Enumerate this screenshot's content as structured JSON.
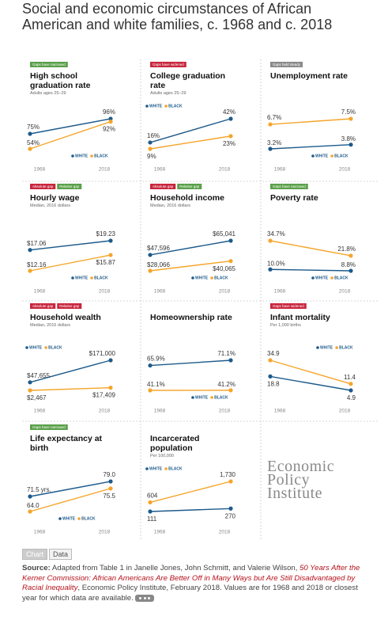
{
  "title": "Social and economic circumstances of African American and white families, c. 1968 and c. 2018",
  "chart_data": [
    {
      "type": "line",
      "badges": [
        {
          "text": "Gaps have narrowed",
          "color": "#5aa04a"
        }
      ],
      "title": "High school graduation rate",
      "subtitle": "Adults ages 25–29",
      "legend": "bottom-right",
      "categories": [
        "1968",
        "2018"
      ],
      "series": [
        {
          "name": "WHITE",
          "color": "#1d5a8a",
          "values": [
            75,
            96
          ],
          "value_labels": [
            "75%",
            "96%"
          ]
        },
        {
          "name": "BLACK",
          "color": "#f5a52a",
          "values": [
            54,
            92
          ],
          "value_labels": [
            "54%",
            "92%"
          ]
        }
      ]
    },
    {
      "type": "line",
      "badges": [
        {
          "text": "Gaps have widened",
          "color": "#c8263d"
        }
      ],
      "title": "College graduation rate",
      "subtitle": "Adults ages 25–29",
      "legend": "top-left",
      "categories": [
        "1968",
        "2018"
      ],
      "series": [
        {
          "name": "WHITE",
          "color": "#1d5a8a",
          "values": [
            16,
            42
          ],
          "value_labels": [
            "16%",
            "42%"
          ]
        },
        {
          "name": "BLACK",
          "color": "#f5a52a",
          "values": [
            9,
            23
          ],
          "value_labels": [
            "9%",
            "23%"
          ]
        }
      ]
    },
    {
      "type": "line",
      "badges": [
        {
          "text": "Gaps held steady",
          "color": "#8a8a8a"
        }
      ],
      "title": "Unemployment rate",
      "legend": "bottom-right",
      "categories": [
        "1968",
        "2018"
      ],
      "series": [
        {
          "name": "WHITE",
          "color": "#1d5a8a",
          "values": [
            3.2,
            3.8
          ],
          "value_labels": [
            "3.2%",
            "3.8%"
          ]
        },
        {
          "name": "BLACK",
          "color": "#f5a52a",
          "values": [
            6.7,
            7.5
          ],
          "value_labels": [
            "6.7%",
            "7.5%"
          ]
        }
      ]
    },
    {
      "type": "line",
      "badges": [
        {
          "text": "Absolute gap",
          "color": "#c8263d"
        },
        {
          "text": "Relative gap",
          "color": "#5aa04a"
        }
      ],
      "title": "Hourly wage",
      "subtitle": "Median, 2016 dollars",
      "legend": "bottom-right",
      "categories": [
        "1968",
        "2018"
      ],
      "series": [
        {
          "name": "WHITE",
          "color": "#1d5a8a",
          "values": [
            17.06,
            19.23
          ],
          "value_labels": [
            "$17.06",
            "$19.23"
          ]
        },
        {
          "name": "BLACK",
          "color": "#f5a52a",
          "values": [
            12.16,
            15.87
          ],
          "value_labels": [
            "$12.16",
            "$15.87"
          ]
        }
      ]
    },
    {
      "type": "line",
      "badges": [
        {
          "text": "Absolute gap",
          "color": "#c8263d"
        },
        {
          "text": "Relative gap",
          "color": "#5aa04a"
        }
      ],
      "title": "Household income",
      "subtitle": "Median, 2016 dollars",
      "legend": "bottom-right",
      "categories": [
        "1968",
        "2018"
      ],
      "series": [
        {
          "name": "WHITE",
          "color": "#1d5a8a",
          "values": [
            47596,
            65041
          ],
          "value_labels": [
            "$47,596",
            "$65,041"
          ]
        },
        {
          "name": "BLACK",
          "color": "#f5a52a",
          "values": [
            28066,
            40065
          ],
          "value_labels": [
            "$28,066",
            "$40,065"
          ]
        }
      ]
    },
    {
      "type": "line",
      "badges": [
        {
          "text": "Gaps have narrowed",
          "color": "#5aa04a"
        }
      ],
      "title": "Poverty rate",
      "legend": "bottom-right",
      "categories": [
        "1968",
        "2018"
      ],
      "series": [
        {
          "name": "WHITE",
          "color": "#1d5a8a",
          "values": [
            10.0,
            8.8
          ],
          "value_labels": [
            "10.0%",
            "8.8%"
          ]
        },
        {
          "name": "BLACK",
          "color": "#f5a52a",
          "values": [
            34.7,
            21.8
          ],
          "value_labels": [
            "34.7%",
            "21.8%"
          ]
        }
      ]
    },
    {
      "type": "line",
      "badges": [
        {
          "text": "Absolute gap",
          "color": "#c8263d"
        },
        {
          "text": "Relative gap",
          "color": "#c8263d"
        }
      ],
      "title": "Household wealth",
      "subtitle": "Median, 2016 dollars",
      "legend": "top-left",
      "categories": [
        "1968",
        "2018"
      ],
      "series": [
        {
          "name": "WHITE",
          "color": "#1d5a8a",
          "values": [
            47655,
            171000
          ],
          "value_labels": [
            "$47,655",
            "$171,000"
          ]
        },
        {
          "name": "BLACK",
          "color": "#f5a52a",
          "values": [
            2467,
            17409
          ],
          "value_labels": [
            "$2,467",
            "$17,409"
          ]
        }
      ]
    },
    {
      "type": "line",
      "title": "Homeownership rate",
      "legend": "bottom-right",
      "categories": [
        "1968",
        "2018"
      ],
      "series": [
        {
          "name": "WHITE",
          "color": "#1d5a8a",
          "values": [
            65.9,
            71.1
          ],
          "value_labels": [
            "65.9%",
            "71.1%"
          ]
        },
        {
          "name": "BLACK",
          "color": "#f5a52a",
          "values": [
            41.1,
            41.2
          ],
          "value_labels": [
            "41.1%",
            "41.2%"
          ]
        }
      ]
    },
    {
      "type": "line",
      "badges": [
        {
          "text": "Gaps have widened",
          "color": "#c8263d"
        }
      ],
      "title": "Infant mortality",
      "subtitle": "Per 1,000 births",
      "legend": "top-right",
      "categories": [
        "1968",
        "2018"
      ],
      "series": [
        {
          "name": "WHITE",
          "color": "#1d5a8a",
          "values": [
            18.8,
            4.9
          ],
          "value_labels": [
            "18.8",
            "4.9"
          ]
        },
        {
          "name": "BLACK",
          "color": "#f5a52a",
          "values": [
            34.9,
            11.4
          ],
          "value_labels": [
            "34.9",
            "11.4"
          ]
        }
      ]
    },
    {
      "type": "line",
      "badges": [
        {
          "text": "Gaps have narrowed",
          "color": "#5aa04a"
        }
      ],
      "title": "Life expectancy at birth",
      "legend": "bottom-center",
      "categories": [
        "1968",
        "2018"
      ],
      "series": [
        {
          "name": "WHITE",
          "color": "#1d5a8a",
          "values": [
            71.5,
            79.0
          ],
          "value_labels": [
            "71.5 yrs.",
            "79.0"
          ]
        },
        {
          "name": "BLACK",
          "color": "#f5a52a",
          "values": [
            64.0,
            75.5
          ],
          "value_labels": [
            "64.0",
            "75.5"
          ]
        }
      ]
    },
    {
      "type": "line",
      "title": "Incarcerated population",
      "subtitle": "Per 100,000",
      "legend": "top-left",
      "categories": [
        "1968",
        "2018"
      ],
      "series": [
        {
          "name": "WHITE",
          "color": "#1d5a8a",
          "values": [
            111,
            270
          ],
          "value_labels": [
            "111",
            "270"
          ]
        },
        {
          "name": "BLACK",
          "color": "#f5a52a",
          "values": [
            604,
            1730
          ],
          "value_labels": [
            "604",
            "1,730"
          ]
        }
      ]
    }
  ],
  "logo": [
    "Economic",
    "Policy",
    "Institute"
  ],
  "tabs": [
    "Chart",
    "Data"
  ],
  "source": {
    "label": "Source:",
    "text": "Adapted from Table 1 in Janelle Jones, John Schmitt, and Valerie Wilson,",
    "link": "50 Years After the Kerner Commission: African Americans Are Better Off in Many Ways but Are Still Disadvantaged by Racial Inequality",
    "rest": ", Economic Policy Institute, February 2018. Values are for 1968 and 2018 or closest year for which data are available."
  }
}
